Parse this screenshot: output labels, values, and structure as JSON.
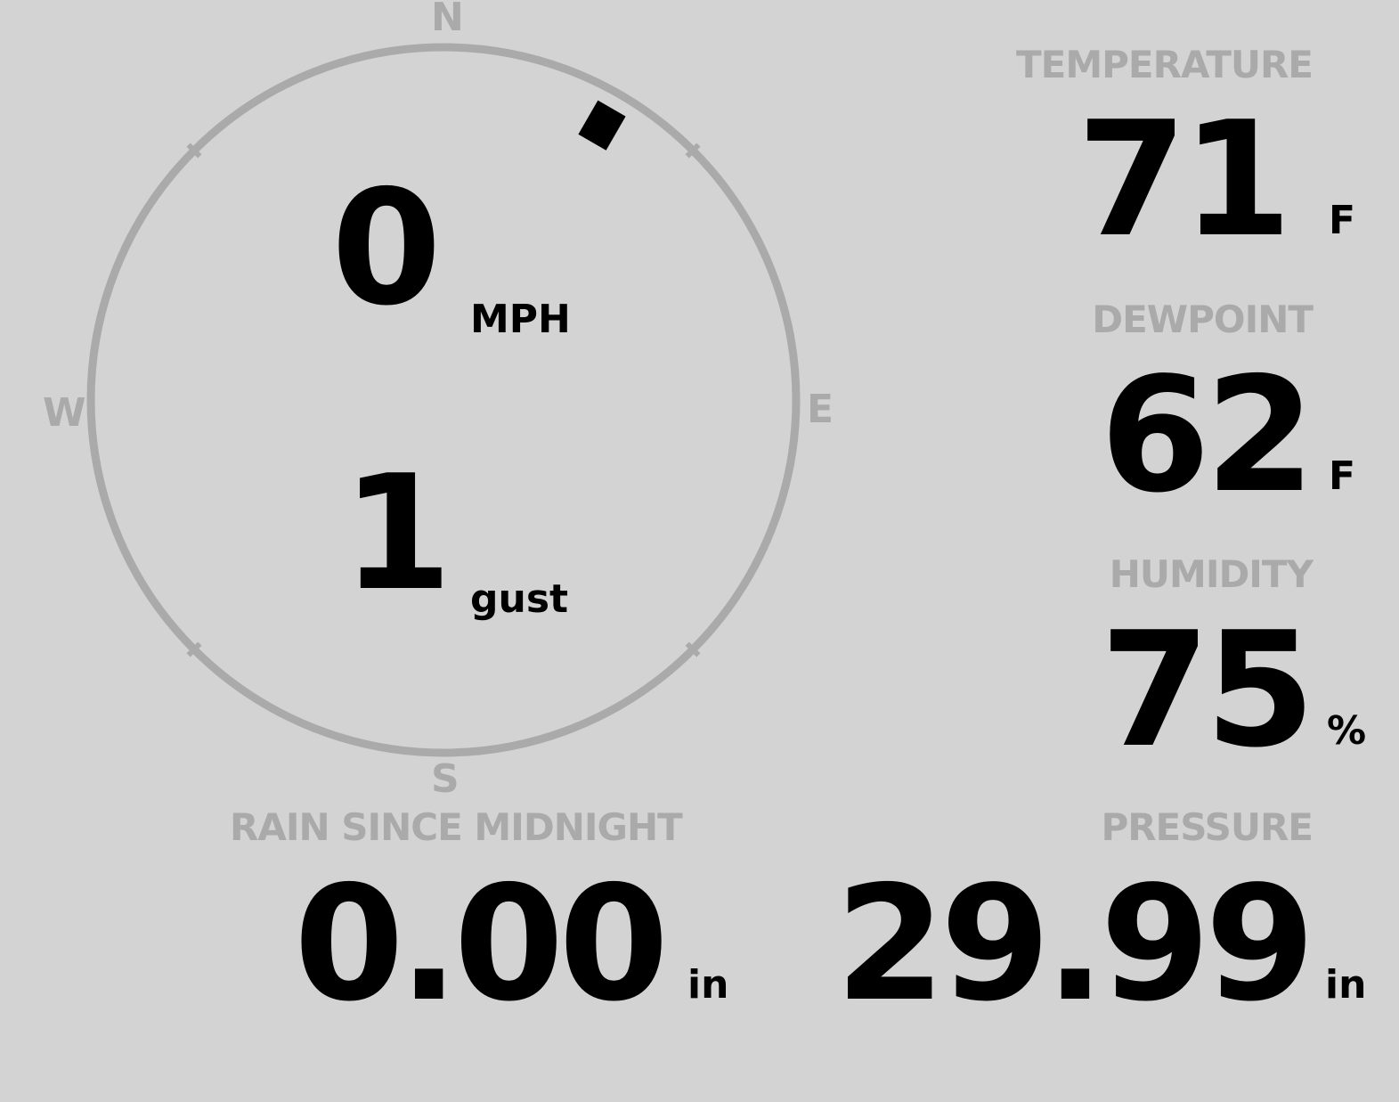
{
  "compass": {
    "north": "N",
    "east": "E",
    "south": "S",
    "west": "W",
    "wind_direction_deg": 30,
    "ring_color": "#aaaaaa",
    "marker_color": "#000000"
  },
  "wind": {
    "speed": "0",
    "speed_unit": "MPH",
    "gust": "1",
    "gust_unit": "gust"
  },
  "temperature": {
    "label": "TEMPERATURE",
    "value": "71",
    "unit": "F"
  },
  "dewpoint": {
    "label": "DEWPOINT",
    "value": "62",
    "unit": "F"
  },
  "humidity": {
    "label": "HUMIDITY",
    "value": "75",
    "unit": "%"
  },
  "pressure": {
    "label": "PRESSURE",
    "value": "29.99",
    "unit": "in"
  },
  "rain": {
    "label": "RAIN SINCE MIDNIGHT",
    "value": "0.00",
    "unit": "in"
  }
}
